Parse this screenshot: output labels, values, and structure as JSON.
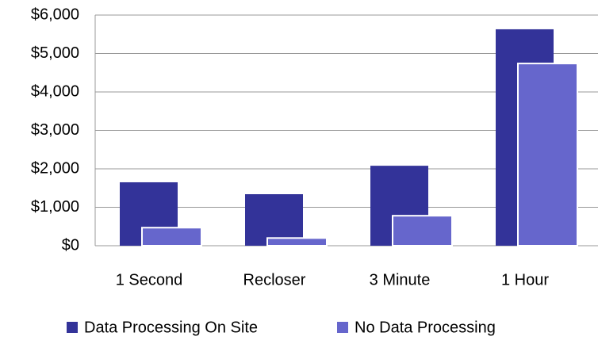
{
  "chart_data": {
    "type": "bar",
    "categories": [
      "1 Second",
      "Recloser",
      "3 Minute",
      "1 Hour"
    ],
    "series": [
      {
        "name": "Data Processing On Site",
        "color": "#333399",
        "values": [
          1650,
          1340,
          2080,
          5630
        ]
      },
      {
        "name": "No Data Processing",
        "color": "#6666cc",
        "values": [
          470,
          200,
          780,
          4740
        ]
      }
    ],
    "ylim": [
      0,
      6000
    ],
    "yticks": [
      {
        "value": 0,
        "label": "$0"
      },
      {
        "value": 1000,
        "label": "$1,000"
      },
      {
        "value": 2000,
        "label": "$2,000"
      },
      {
        "value": 3000,
        "label": "$3,000"
      },
      {
        "value": 4000,
        "label": "$4,000"
      },
      {
        "value": 5000,
        "label": "$5,000"
      },
      {
        "value": 6000,
        "label": "$6,000"
      }
    ],
    "grid": true,
    "legend": "bottom"
  }
}
